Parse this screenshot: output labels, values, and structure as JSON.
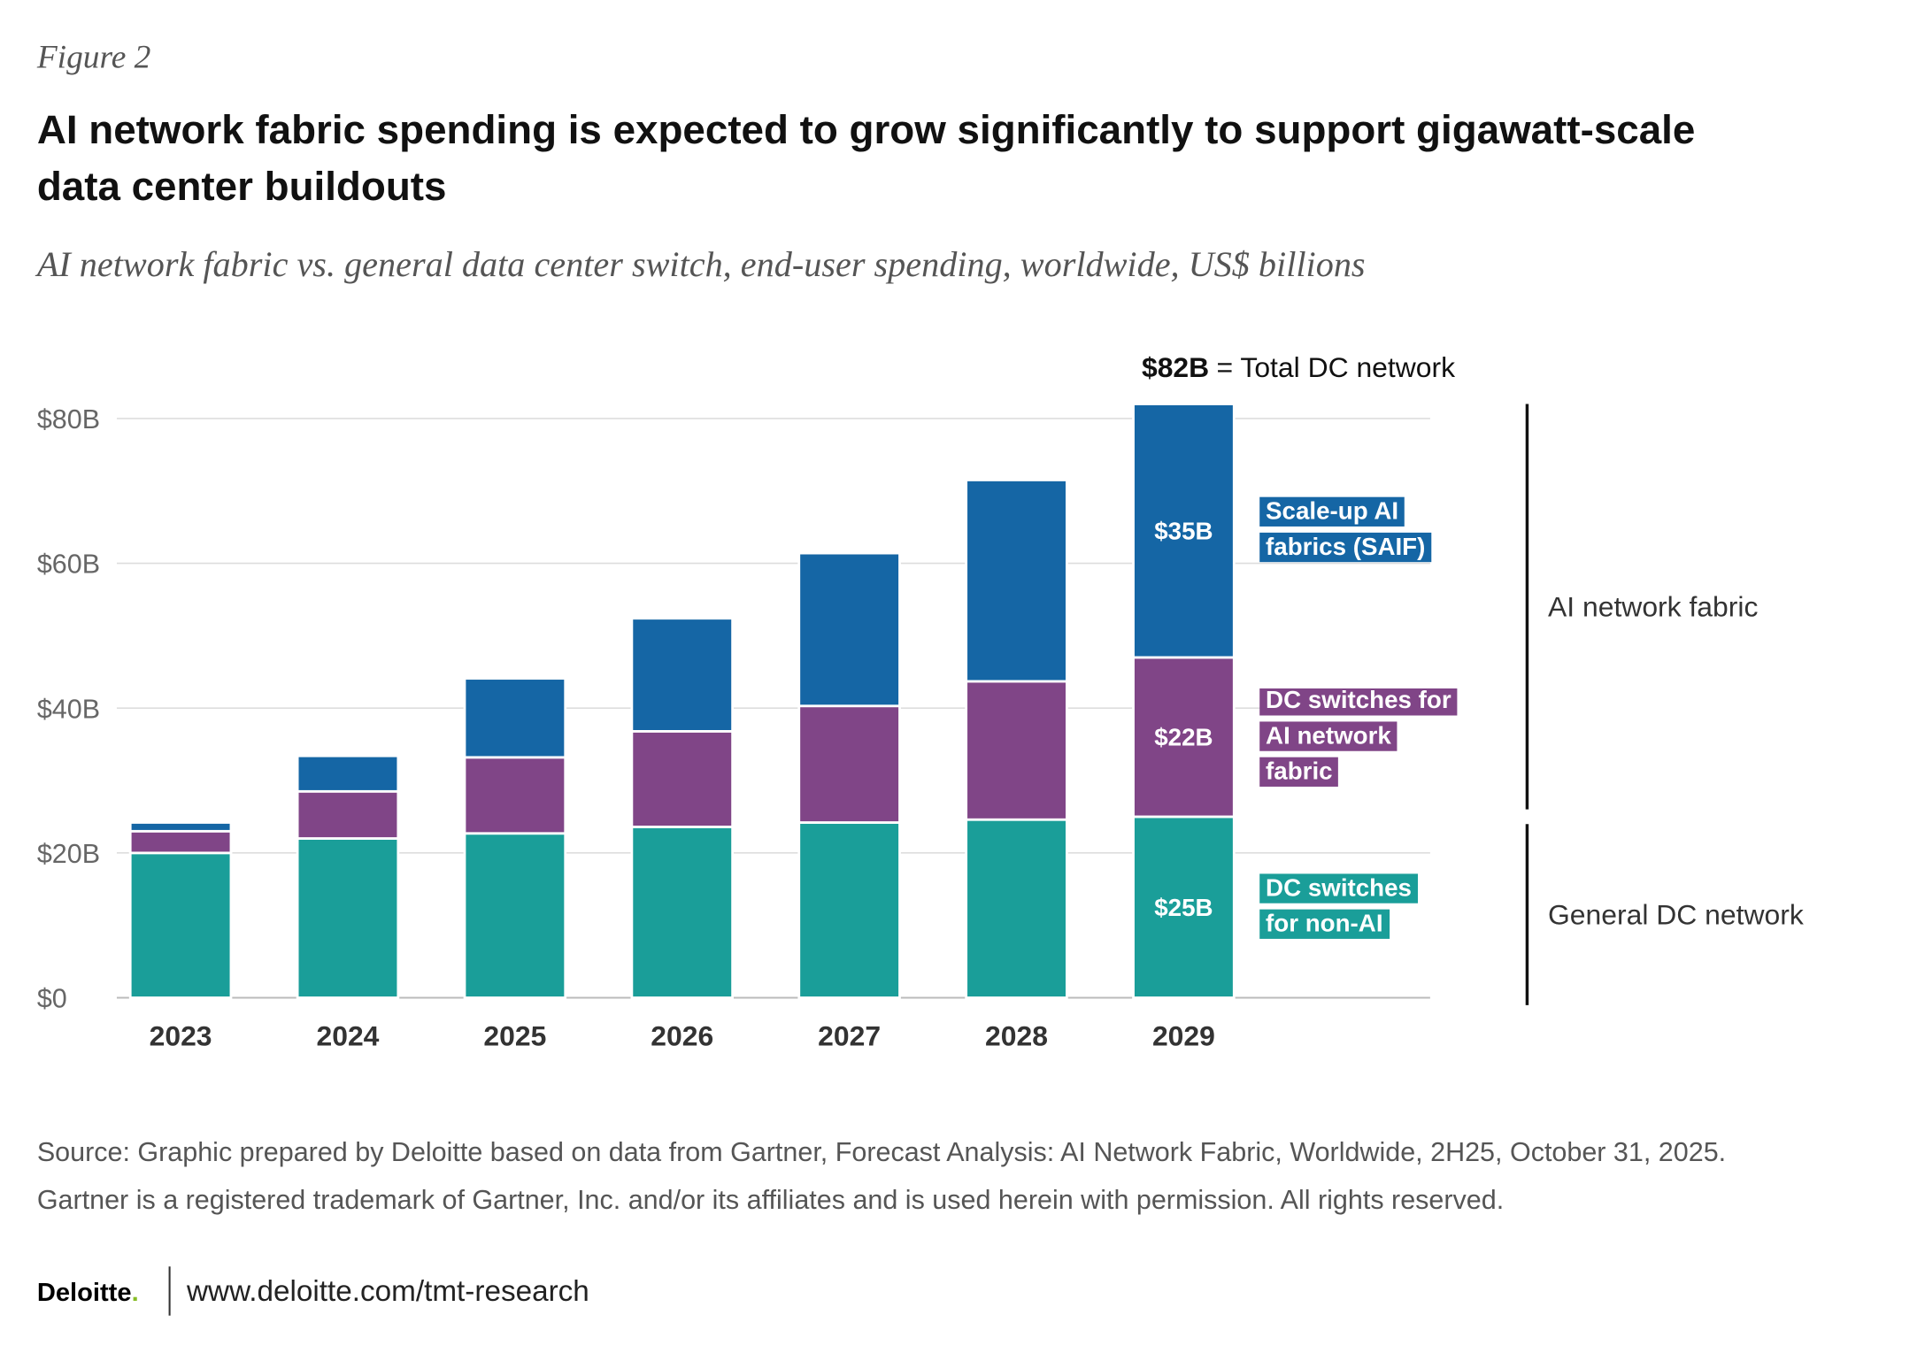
{
  "figure_label": "Figure 2",
  "chart_data": {
    "type": "stacked_bar",
    "title": "AI network fabric spending is expected to grow significantly to support gigawatt-scale data center buildouts",
    "subtitle": "AI network fabric vs. general data center switch, end-user spending, worldwide, US$ billions",
    "categories": [
      "2023",
      "2024",
      "2025",
      "2026",
      "2027",
      "2028",
      "2029"
    ],
    "series": [
      {
        "name": "DC switches for non-AI",
        "color": "#1a9e99",
        "values": [
          20.0,
          22.0,
          22.7,
          23.6,
          24.2,
          24.6,
          25
        ],
        "value_labels": [
          null,
          null,
          null,
          null,
          null,
          null,
          "$25B"
        ]
      },
      {
        "name": "DC switches for AI network fabric",
        "color": "#804587",
        "values": [
          3.0,
          6.5,
          10.5,
          13.2,
          16.1,
          19.1,
          22
        ],
        "value_labels": [
          null,
          null,
          null,
          null,
          null,
          null,
          "$22B"
        ]
      },
      {
        "name": "Scale-up AI fabrics (SAIF)",
        "color": "#1566a5",
        "values": [
          1.2,
          4.9,
          10.9,
          15.6,
          21.1,
          27.8,
          35
        ],
        "value_labels": [
          null,
          null,
          null,
          null,
          null,
          null,
          "$35B"
        ]
      }
    ],
    "ylim": [
      0,
      80
    ],
    "yticks": [
      {
        "value": 0,
        "label": "$0"
      },
      {
        "value": 20,
        "label": "$20B"
      },
      {
        "value": 40,
        "label": "$40B"
      },
      {
        "value": 60,
        "label": "$60B"
      },
      {
        "value": 80,
        "label": "$80B"
      }
    ],
    "grid": true,
    "total_annotation": {
      "value": 82,
      "label": "$82B",
      "text": "= Total DC network"
    },
    "groups": [
      "AI network fabric",
      "General DC network"
    ]
  },
  "footer": {
    "source": [
      "Source: Graphic prepared by Deloitte based on data from Gartner, Forecast Analysis: AI Network Fabric, Worldwide, 2H25, October 31, 2025.",
      "Gartner is a registered trademark of Gartner, Inc. and/or its affiliates and is used herein with permission. All rights reserved."
    ],
    "logo": "Deloitte",
    "logo_dot": ".",
    "url": "www.deloitte.com/tmt-research"
  }
}
